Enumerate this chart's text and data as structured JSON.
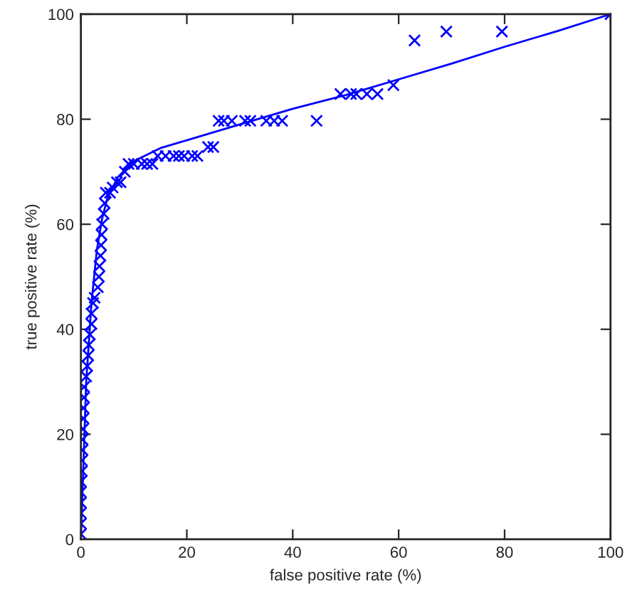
{
  "chart_data": {
    "type": "scatter",
    "xlabel": "false positive rate (%)",
    "ylabel": "true positive rate (%)",
    "xlim": [
      0,
      100
    ],
    "ylim": [
      0,
      100
    ],
    "xticks": [
      0,
      20,
      40,
      60,
      80,
      100
    ],
    "yticks": [
      0,
      20,
      40,
      60,
      80,
      100
    ],
    "grid": false,
    "legend": false,
    "series": [
      {
        "marker": "cross",
        "color": "#0000ff",
        "x": [
          0,
          0,
          0,
          0,
          0,
          0,
          0.2,
          0.2,
          0.3,
          0.3,
          0.4,
          0.5,
          0.5,
          0.6,
          0.6,
          1,
          1.2,
          1.4,
          1.5,
          1.7,
          2,
          2,
          2.3,
          2.6,
          3.2,
          3.4,
          3.5,
          3.7,
          3.8,
          3.9,
          4,
          4.3,
          4.5,
          4.7,
          5.5,
          6,
          6.8,
          7.5,
          8.3,
          9,
          10,
          11.5,
          12.5,
          13.5,
          14.5,
          16,
          17.5,
          18.5,
          19.5,
          21,
          22,
          24,
          25,
          26,
          27,
          28.5,
          31,
          32,
          35,
          36.5,
          38,
          44.5,
          49,
          51,
          52,
          54,
          56,
          59,
          63,
          69,
          79.5,
          100
        ],
        "values": [
          1,
          3,
          5,
          7,
          9,
          11,
          13,
          15,
          17,
          19,
          21,
          23,
          25,
          27,
          29,
          31,
          33,
          35,
          37,
          39,
          41,
          43,
          45,
          46,
          48,
          50,
          52,
          54,
          56,
          58,
          60,
          62,
          64,
          66,
          66,
          67,
          68,
          68,
          70,
          71.5,
          71.5,
          71.5,
          71.5,
          71.5,
          73,
          73,
          73,
          73,
          73,
          73,
          73,
          74.7,
          74.7,
          79.7,
          79.7,
          79.7,
          79.7,
          79.7,
          79.7,
          79.7,
          79.7,
          79.7,
          84.8,
          84.8,
          84.8,
          84.8,
          84.8,
          86.5,
          95,
          96.7,
          96.7,
          100
        ]
      },
      {
        "type": "line",
        "marker": "none",
        "line_style": "solid",
        "color": "#0000ff",
        "x": [
          0,
          0.5,
          1,
          2,
          3,
          4,
          5,
          7,
          10,
          15,
          20,
          30,
          40,
          50,
          60,
          70,
          80,
          90,
          100
        ],
        "values": [
          0,
          15,
          30,
          45,
          55,
          61,
          65,
          69,
          72,
          74.5,
          76,
          79,
          82,
          84.6,
          87.6,
          90.6,
          93.8,
          96.8,
          100
        ]
      }
    ]
  }
}
